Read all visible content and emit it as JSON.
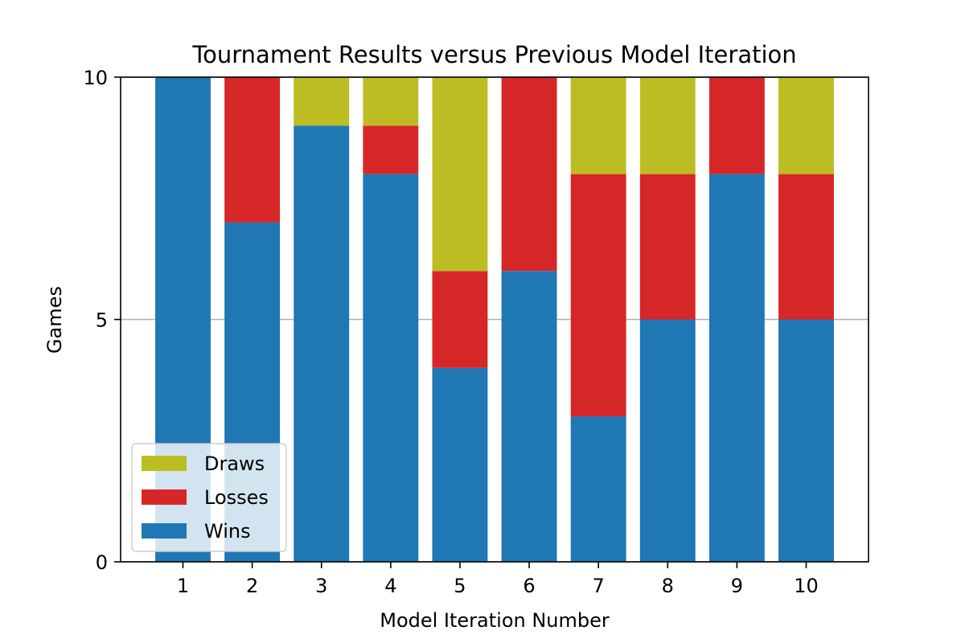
{
  "chart_data": {
    "type": "bar",
    "stacked": true,
    "title": "Tournament Results versus Previous Model Iteration",
    "xlabel": "Model Iteration Number",
    "ylabel": "Games",
    "categories": [
      "1",
      "2",
      "3",
      "4",
      "5",
      "6",
      "7",
      "8",
      "9",
      "10"
    ],
    "series": [
      {
        "name": "Wins",
        "color": "#1f77b4",
        "values": [
          10,
          7,
          9,
          8,
          4,
          6,
          3,
          5,
          8,
          5
        ]
      },
      {
        "name": "Losses",
        "color": "#d62728",
        "values": [
          0,
          3,
          0,
          1,
          2,
          4,
          5,
          3,
          2,
          3
        ]
      },
      {
        "name": "Draws",
        "color": "#bcbd22",
        "values": [
          0,
          0,
          1,
          1,
          4,
          0,
          2,
          2,
          0,
          2
        ]
      }
    ],
    "ylim": [
      0,
      10
    ],
    "yticks": [
      "0",
      "5",
      "10"
    ],
    "grid": "horizontal",
    "legend": {
      "placement": "lower-left",
      "order": [
        "Draws",
        "Losses",
        "Wins"
      ]
    }
  }
}
